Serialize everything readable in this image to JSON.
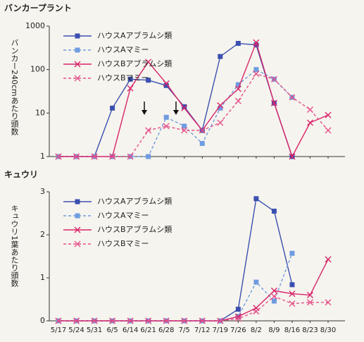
{
  "chart_data": [
    {
      "type": "line",
      "title": "バンカープラント",
      "ylabel": "バンカー240cmあたり頭数",
      "log_scale": true,
      "ylim": [
        1,
        1000
      ],
      "yticks": [
        1,
        10,
        100,
        1000
      ],
      "legend": "upper left",
      "series": [
        {
          "name": "ハウスAアブラムシ類",
          "color": "#3a4fb0",
          "marker": "square",
          "dashed": false,
          "values": [
            1,
            1,
            1,
            13,
            60,
            57,
            43,
            14,
            4,
            200,
            400,
            370,
            17,
            1,
            null,
            null
          ]
        },
        {
          "name": "ハウスAマミー",
          "color": "#6f9be0",
          "marker": "square",
          "dashed": true,
          "values": [
            1,
            1,
            1,
            1,
            1,
            1,
            8,
            5,
            2,
            13,
            45,
            100,
            60,
            23,
            null,
            null
          ]
        },
        {
          "name": "ハウスBアブラムシ類",
          "color": "#d8246a",
          "marker": "x",
          "dashed": false,
          "values": [
            1,
            1,
            1,
            1,
            37,
            150,
            48,
            13,
            4,
            15,
            36,
            420,
            17,
            1,
            6,
            9
          ]
        },
        {
          "name": "ハウスBマミー",
          "color": "#e4508a",
          "marker": "x",
          "dashed": true,
          "values": [
            1,
            1,
            1,
            1,
            1,
            4,
            5,
            4,
            4,
            6,
            19,
            80,
            60,
            23,
            12,
            4
          ]
        }
      ]
    },
    {
      "type": "line",
      "title": "キュウリ",
      "ylabel": "キュウリ1葉あたり頭数",
      "categories": [
        "5/17",
        "5/24",
        "5/31",
        "6/5",
        "6/14",
        "6/21",
        "6/28",
        "7/5",
        "7/12",
        "7/19",
        "7/26",
        "8/2",
        "8/9",
        "8/16",
        "8/23",
        "8/30"
      ],
      "ylim": [
        0,
        3
      ],
      "yticks": [
        0,
        1,
        2,
        3
      ],
      "legend": "upper left",
      "series": [
        {
          "name": "ハウスAアブラムシ類",
          "color": "#3a4fb0",
          "marker": "square",
          "dashed": false,
          "values": [
            0,
            0,
            0,
            0,
            0,
            0,
            0,
            0,
            0,
            0,
            0.27,
            2.84,
            2.55,
            0.84,
            null,
            null
          ]
        },
        {
          "name": "ハウスAマミー",
          "color": "#6f9be0",
          "marker": "square",
          "dashed": true,
          "values": [
            0,
            0,
            0,
            0,
            0,
            0,
            0,
            0,
            0,
            0,
            0.1,
            0.9,
            0.46,
            1.57,
            null,
            null
          ]
        },
        {
          "name": "ハウスBアブラムシ類",
          "color": "#d8246a",
          "marker": "x",
          "dashed": false,
          "values": [
            0,
            0,
            0,
            0,
            0,
            0,
            0,
            0,
            0,
            0,
            0.1,
            0.3,
            0.7,
            0.63,
            0.6,
            1.43
          ]
        },
        {
          "name": "ハウスBマミー",
          "color": "#e4508a",
          "marker": "x",
          "dashed": true,
          "values": [
            0,
            0,
            0,
            0,
            0,
            0,
            0,
            0,
            0,
            0,
            0.05,
            0.22,
            0.57,
            0.4,
            0.43,
            0.43
          ]
        }
      ]
    }
  ]
}
